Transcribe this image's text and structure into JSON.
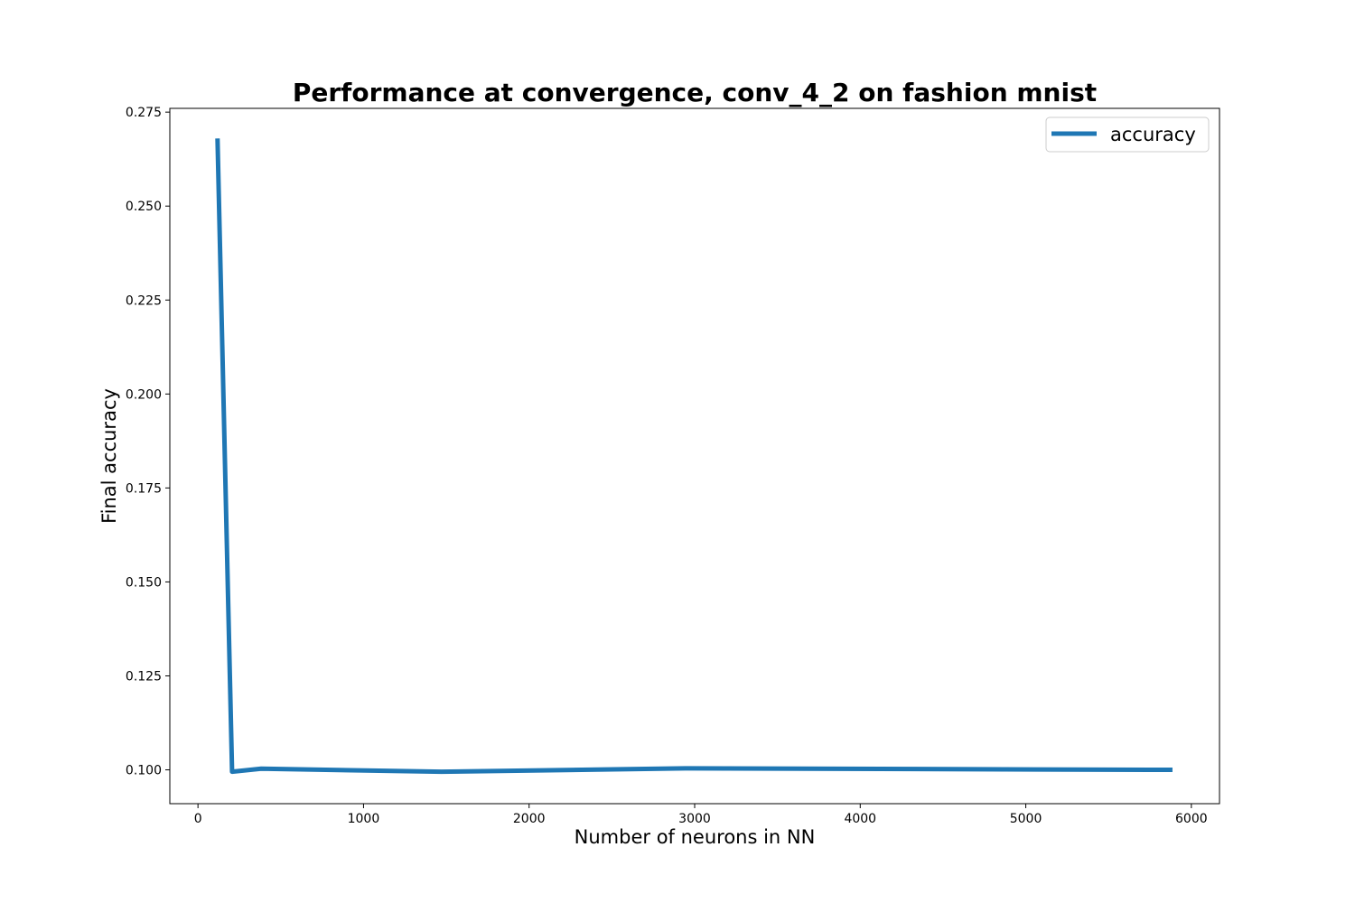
{
  "chart_data": {
    "type": "line",
    "title": "Performance at convergence, conv_4_2 on fashion mnist",
    "xlabel": "Number of neurons in NN",
    "ylabel": "Final accuracy",
    "xlim": [
      -170,
      6170
    ],
    "ylim": [
      0.091,
      0.276
    ],
    "xticks": [
      0,
      1000,
      2000,
      3000,
      4000,
      5000,
      6000
    ],
    "xtick_labels": [
      "0",
      "1000",
      "2000",
      "3000",
      "4000",
      "5000",
      "6000"
    ],
    "yticks": [
      0.1,
      0.125,
      0.15,
      0.175,
      0.2,
      0.225,
      0.25,
      0.275
    ],
    "ytick_labels": [
      "0.100",
      "0.125",
      "0.150",
      "0.175",
      "0.200",
      "0.225",
      "0.250",
      "0.275"
    ],
    "grid": false,
    "legend_position": "top-right",
    "series": [
      {
        "name": "accuracy",
        "color": "#1f77b4",
        "x": [
          118,
          206,
          382,
          1470,
          2942,
          5886
        ],
        "y": [
          0.268,
          0.0995,
          0.1003,
          0.0995,
          0.1004,
          0.1
        ]
      }
    ]
  }
}
